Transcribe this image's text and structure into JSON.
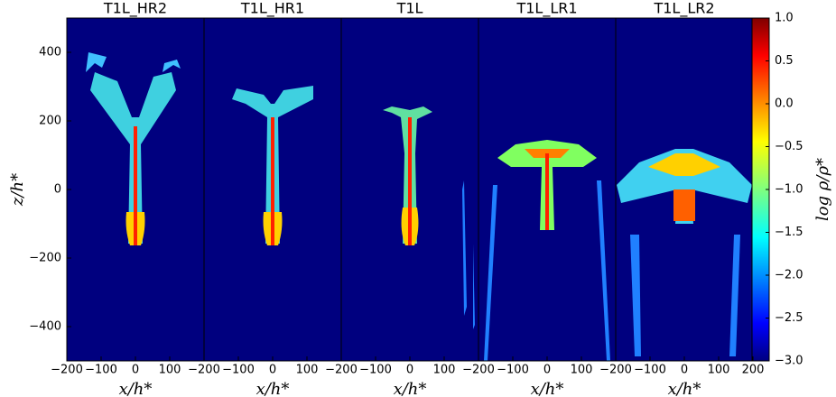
{
  "chart_data": {
    "type": "heatmap",
    "ylabel": "z/h*",
    "ylim": [
      -500,
      500
    ],
    "yticks": [
      {
        "value": -400,
        "label": "−400"
      },
      {
        "value": -200,
        "label": "−200"
      },
      0,
      200,
      400
    ],
    "panels": [
      {
        "title": "T1L_HR2",
        "xlabel": "x/h*",
        "xlim": [
          -200,
          200
        ],
        "xticks": [
          {
            "value": -200,
            "label": "−200"
          },
          {
            "value": -100,
            "label": "−100"
          },
          0,
          100
        ]
      },
      {
        "title": "T1L_HR1",
        "xlabel": "x/h*",
        "xlim": [
          -200,
          200
        ],
        "xticks": [
          {
            "value": -200,
            "label": "−200"
          },
          {
            "value": -100,
            "label": "−100"
          },
          0,
          100
        ]
      },
      {
        "title": "T1L",
        "xlabel": "x/h*",
        "xlim": [
          -200,
          200
        ],
        "xticks": [
          {
            "value": -200,
            "label": "−200"
          },
          {
            "value": -100,
            "label": "−100"
          },
          0,
          100
        ]
      },
      {
        "title": "T1L_LR1",
        "xlabel": "x/h*",
        "xlim": [
          -200,
          200
        ],
        "xticks": [
          {
            "value": -200,
            "label": "−200"
          },
          {
            "value": -100,
            "label": "−100"
          },
          0,
          100
        ]
      },
      {
        "title": "T1L_LR2",
        "xlabel": "x/h*",
        "xlim": [
          -200,
          200
        ],
        "xticks": [
          {
            "value": -200,
            "label": "−200"
          },
          {
            "value": -100,
            "label": "−100"
          },
          0,
          100,
          200
        ]
      }
    ],
    "colorbar": {
      "label": "log ρ/ρ*",
      "lim": [
        -3,
        1
      ],
      "ticks": [
        {
          "value": -3,
          "label": "−3.0"
        },
        {
          "value": -2.5,
          "label": "−2.5"
        },
        {
          "value": -2,
          "label": "−2.0"
        },
        {
          "value": -1.5,
          "label": "−1.5"
        },
        {
          "value": -1,
          "label": "−1.0"
        },
        {
          "value": -0.5,
          "label": "−0.5"
        },
        {
          "value": 0,
          "label": "0.0"
        },
        0.5,
        {
          "value": 1,
          "label": "1.0"
        }
      ]
    }
  }
}
